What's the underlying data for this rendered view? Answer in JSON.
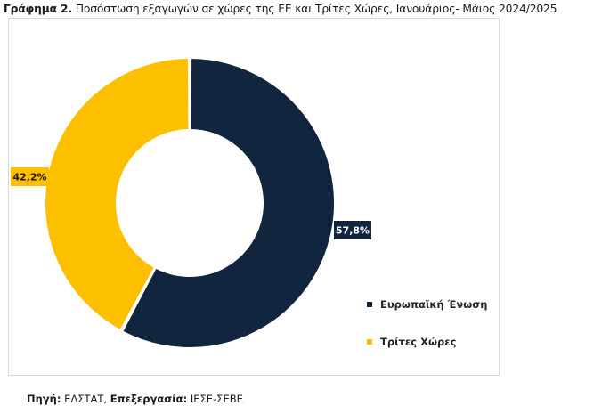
{
  "caption": {
    "label": "Γράφημα 2.",
    "text": "Ποσόστωση εξαγωγών σε χώρες της ΕΕ και Τρίτες Χώρες, Ιανουάριος- Μάιος 2024/2025"
  },
  "chart_data": {
    "type": "pie",
    "variant": "donut",
    "categories": [
      "Ευρωπαϊκή Ένωση",
      "Τρίτες Χώρες"
    ],
    "values": [
      57.8,
      42.2
    ],
    "value_labels": [
      "57,8%",
      "42,2%"
    ],
    "colors": [
      "#12253f",
      "#fcc000"
    ],
    "legend_position": "bottom-right"
  },
  "source": {
    "label1": "Πηγή:",
    "value1": " ΕΛΣΤΑΤ, ",
    "label2": "Επεξεργασία:",
    "value2": " ΙΕΣΕ-ΣΕΒΕ"
  }
}
